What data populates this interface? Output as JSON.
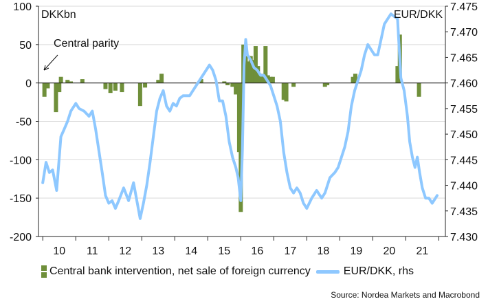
{
  "chart_data": {
    "type": "bar+line",
    "left_axis_unit": "DKKbn",
    "right_axis_unit": "EUR/DKK",
    "left_ylim": [
      -200,
      100
    ],
    "right_ylim": [
      7.43,
      7.475
    ],
    "left_ticks": [
      "100",
      "50",
      "0",
      "-50",
      "-100",
      "-150",
      "-200"
    ],
    "right_ticks": [
      "7.475",
      "7.470",
      "7.465",
      "7.460",
      "7.455",
      "7.450",
      "7.445",
      "7.440",
      "7.435",
      "7.430"
    ],
    "x_ticks": [
      "10",
      "11",
      "12",
      "13",
      "14",
      "15",
      "16",
      "17",
      "18",
      "19",
      "20",
      "21"
    ],
    "annotation": "Central parity",
    "grid": "horizontal",
    "series": [
      {
        "name": "Central bank intervention, net sale of foreign currency",
        "axis": "left",
        "kind": "bar",
        "color": "#6f8f3a",
        "points": [
          {
            "x": 2009.05,
            "y": -18
          },
          {
            "x": 2009.15,
            "y": -7
          },
          {
            "x": 2009.4,
            "y": -38
          },
          {
            "x": 2009.5,
            "y": -12
          },
          {
            "x": 2009.55,
            "y": 8
          },
          {
            "x": 2009.75,
            "y": 4
          },
          {
            "x": 2009.85,
            "y": 2
          },
          {
            "x": 2010.2,
            "y": 5
          },
          {
            "x": 2010.9,
            "y": -8
          },
          {
            "x": 2011.05,
            "y": -13
          },
          {
            "x": 2011.2,
            "y": -10
          },
          {
            "x": 2011.4,
            "y": -12
          },
          {
            "x": 2011.95,
            "y": -30
          },
          {
            "x": 2012.1,
            "y": -6
          },
          {
            "x": 2012.5,
            "y": 4
          },
          {
            "x": 2012.6,
            "y": 12
          },
          {
            "x": 2013.8,
            "y": 5
          },
          {
            "x": 2014.5,
            "y": 2
          },
          {
            "x": 2014.6,
            "y": -3
          },
          {
            "x": 2014.75,
            "y": -5
          },
          {
            "x": 2014.85,
            "y": -15
          },
          {
            "x": 2014.95,
            "y": -90
          },
          {
            "x": 2015.0,
            "y": -168
          },
          {
            "x": 2015.08,
            "y": 50
          },
          {
            "x": 2015.15,
            "y": 35
          },
          {
            "x": 2015.22,
            "y": 28
          },
          {
            "x": 2015.3,
            "y": 35
          },
          {
            "x": 2015.37,
            "y": 30
          },
          {
            "x": 2015.45,
            "y": 48
          },
          {
            "x": 2015.52,
            "y": 22
          },
          {
            "x": 2015.6,
            "y": 12
          },
          {
            "x": 2015.68,
            "y": 10
          },
          {
            "x": 2015.75,
            "y": 48
          },
          {
            "x": 2015.82,
            "y": 10
          },
          {
            "x": 2015.9,
            "y": 8
          },
          {
            "x": 2015.97,
            "y": 8
          },
          {
            "x": 2016.3,
            "y": -22
          },
          {
            "x": 2016.38,
            "y": -24
          },
          {
            "x": 2016.6,
            "y": -5
          },
          {
            "x": 2017.55,
            "y": -5
          },
          {
            "x": 2017.62,
            "y": -3
          },
          {
            "x": 2018.4,
            "y": 8
          },
          {
            "x": 2018.47,
            "y": 12
          },
          {
            "x": 2019.75,
            "y": 22
          },
          {
            "x": 2019.82,
            "y": 63
          },
          {
            "x": 2020.4,
            "y": -18
          }
        ]
      },
      {
        "name": "EUR/DKK, rhs",
        "axis": "right",
        "kind": "line",
        "color": "#8ec8ff",
        "points": [
          {
            "x": 2009.0,
            "y": 7.4405
          },
          {
            "x": 2009.1,
            "y": 7.4445
          },
          {
            "x": 2009.2,
            "y": 7.4425
          },
          {
            "x": 2009.3,
            "y": 7.443
          },
          {
            "x": 2009.42,
            "y": 7.439
          },
          {
            "x": 2009.55,
            "y": 7.4495
          },
          {
            "x": 2009.65,
            "y": 7.451
          },
          {
            "x": 2009.75,
            "y": 7.4525
          },
          {
            "x": 2009.85,
            "y": 7.4545
          },
          {
            "x": 2010.0,
            "y": 7.456
          },
          {
            "x": 2010.1,
            "y": 7.455
          },
          {
            "x": 2010.25,
            "y": 7.4545
          },
          {
            "x": 2010.4,
            "y": 7.4535
          },
          {
            "x": 2010.5,
            "y": 7.4545
          },
          {
            "x": 2010.6,
            "y": 7.451
          },
          {
            "x": 2010.8,
            "y": 7.4425
          },
          {
            "x": 2010.9,
            "y": 7.438
          },
          {
            "x": 2011.0,
            "y": 7.4365
          },
          {
            "x": 2011.1,
            "y": 7.437
          },
          {
            "x": 2011.2,
            "y": 7.4355
          },
          {
            "x": 2011.3,
            "y": 7.437
          },
          {
            "x": 2011.45,
            "y": 7.4395
          },
          {
            "x": 2011.6,
            "y": 7.437
          },
          {
            "x": 2011.75,
            "y": 7.4405
          },
          {
            "x": 2011.85,
            "y": 7.437
          },
          {
            "x": 2011.95,
            "y": 7.4335
          },
          {
            "x": 2012.05,
            "y": 7.4365
          },
          {
            "x": 2012.15,
            "y": 7.44
          },
          {
            "x": 2012.25,
            "y": 7.4445
          },
          {
            "x": 2012.35,
            "y": 7.4495
          },
          {
            "x": 2012.45,
            "y": 7.4545
          },
          {
            "x": 2012.55,
            "y": 7.457
          },
          {
            "x": 2012.65,
            "y": 7.4585
          },
          {
            "x": 2012.75,
            "y": 7.4555
          },
          {
            "x": 2012.85,
            "y": 7.4545
          },
          {
            "x": 2012.95,
            "y": 7.456
          },
          {
            "x": 2013.05,
            "y": 7.4555
          },
          {
            "x": 2013.15,
            "y": 7.457
          },
          {
            "x": 2013.25,
            "y": 7.4575
          },
          {
            "x": 2013.35,
            "y": 7.4575
          },
          {
            "x": 2013.45,
            "y": 7.4575
          },
          {
            "x": 2013.55,
            "y": 7.4585
          },
          {
            "x": 2013.65,
            "y": 7.4595
          },
          {
            "x": 2013.75,
            "y": 7.4605
          },
          {
            "x": 2013.85,
            "y": 7.4615
          },
          {
            "x": 2013.95,
            "y": 7.4625
          },
          {
            "x": 2014.05,
            "y": 7.4635
          },
          {
            "x": 2014.15,
            "y": 7.4625
          },
          {
            "x": 2014.25,
            "y": 7.4605
          },
          {
            "x": 2014.35,
            "y": 7.4565
          },
          {
            "x": 2014.45,
            "y": 7.4565
          },
          {
            "x": 2014.55,
            "y": 7.4535
          },
          {
            "x": 2014.65,
            "y": 7.4485
          },
          {
            "x": 2014.75,
            "y": 7.4455
          },
          {
            "x": 2014.85,
            "y": 7.4435
          },
          {
            "x": 2014.92,
            "y": 7.4415
          },
          {
            "x": 2015.0,
            "y": 7.437
          },
          {
            "x": 2015.05,
            "y": 7.447
          },
          {
            "x": 2015.1,
            "y": 7.4635
          },
          {
            "x": 2015.15,
            "y": 7.4685
          },
          {
            "x": 2015.2,
            "y": 7.4655
          },
          {
            "x": 2015.3,
            "y": 7.4645
          },
          {
            "x": 2015.4,
            "y": 7.463
          },
          {
            "x": 2015.5,
            "y": 7.4625
          },
          {
            "x": 2015.6,
            "y": 7.4615
          },
          {
            "x": 2015.7,
            "y": 7.4615
          },
          {
            "x": 2015.8,
            "y": 7.4605
          },
          {
            "x": 2015.9,
            "y": 7.4595
          },
          {
            "x": 2016.0,
            "y": 7.4575
          },
          {
            "x": 2016.1,
            "y": 7.4555
          },
          {
            "x": 2016.2,
            "y": 7.4525
          },
          {
            "x": 2016.3,
            "y": 7.4465
          },
          {
            "x": 2016.4,
            "y": 7.4425
          },
          {
            "x": 2016.5,
            "y": 7.4395
          },
          {
            "x": 2016.6,
            "y": 7.4385
          },
          {
            "x": 2016.7,
            "y": 7.4395
          },
          {
            "x": 2016.8,
            "y": 7.4385
          },
          {
            "x": 2016.9,
            "y": 7.4365
          },
          {
            "x": 2017.0,
            "y": 7.4355
          },
          {
            "x": 2017.15,
            "y": 7.4375
          },
          {
            "x": 2017.3,
            "y": 7.439
          },
          {
            "x": 2017.45,
            "y": 7.4375
          },
          {
            "x": 2017.55,
            "y": 7.4385
          },
          {
            "x": 2017.7,
            "y": 7.4415
          },
          {
            "x": 2017.85,
            "y": 7.4425
          },
          {
            "x": 2017.95,
            "y": 7.4435
          },
          {
            "x": 2018.05,
            "y": 7.4455
          },
          {
            "x": 2018.15,
            "y": 7.4475
          },
          {
            "x": 2018.25,
            "y": 7.4505
          },
          {
            "x": 2018.35,
            "y": 7.4555
          },
          {
            "x": 2018.45,
            "y": 7.4585
          },
          {
            "x": 2018.55,
            "y": 7.4605
          },
          {
            "x": 2018.65,
            "y": 7.4625
          },
          {
            "x": 2018.75,
            "y": 7.4655
          },
          {
            "x": 2018.85,
            "y": 7.4675
          },
          {
            "x": 2018.95,
            "y": 7.4665
          },
          {
            "x": 2019.05,
            "y": 7.4655
          },
          {
            "x": 2019.15,
            "y": 7.4655
          },
          {
            "x": 2019.25,
            "y": 7.4685
          },
          {
            "x": 2019.35,
            "y": 7.4715
          },
          {
            "x": 2019.45,
            "y": 7.4725
          },
          {
            "x": 2019.55,
            "y": 7.4735
          },
          {
            "x": 2019.65,
            "y": 7.473
          },
          {
            "x": 2019.75,
            "y": 7.4725
          },
          {
            "x": 2019.85,
            "y": 7.461
          },
          {
            "x": 2019.95,
            "y": 7.4585
          },
          {
            "x": 2020.05,
            "y": 7.4535
          },
          {
            "x": 2020.12,
            "y": 7.4485
          },
          {
            "x": 2020.2,
            "y": 7.4455
          },
          {
            "x": 2020.28,
            "y": 7.4435
          },
          {
            "x": 2020.35,
            "y": 7.4455
          },
          {
            "x": 2020.42,
            "y": 7.4425
          },
          {
            "x": 2020.5,
            "y": 7.4395
          },
          {
            "x": 2020.6,
            "y": 7.4375
          },
          {
            "x": 2020.7,
            "y": 7.4375
          },
          {
            "x": 2020.8,
            "y": 7.4365
          },
          {
            "x": 2020.9,
            "y": 7.4375
          },
          {
            "x": 2020.95,
            "y": 7.438
          }
        ]
      }
    ]
  },
  "legend": {
    "bars_label": "Central bank intervention, net sale of foreign currency",
    "line_label": "EUR/DKK, rhs"
  },
  "source": "Source: Nordea Markets and Macrobond"
}
